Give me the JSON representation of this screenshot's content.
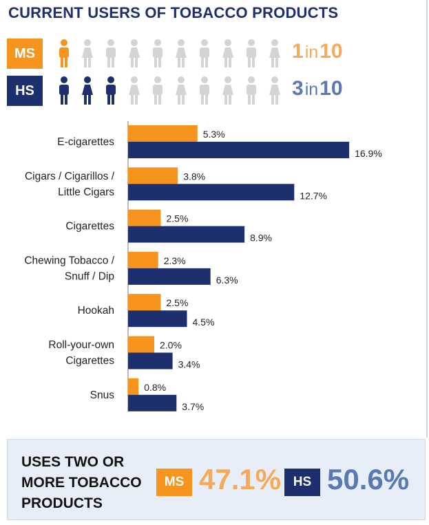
{
  "title": "CURRENT USERS OF TOBACCO PRODUCTS",
  "ratios": {
    "ms": {
      "badge": "MS",
      "count": "1",
      "in": "in",
      "total": "10",
      "highlighted": 1
    },
    "hs": {
      "badge": "HS",
      "count": "3",
      "in": "in",
      "total": "10",
      "highlighted": 3
    }
  },
  "colors": {
    "ms": "#f7941d",
    "hs": "#1e2f6e",
    "inactive_person": "#d4d4d4"
  },
  "chart_data": {
    "type": "bar",
    "orientation": "horizontal",
    "categories": [
      [
        "E-cigarettes"
      ],
      [
        "Cigars / Cigarillos /",
        "Little Cigars"
      ],
      [
        "Cigarettes"
      ],
      [
        "Chewing Tobacco /",
        "Snuff / Dip"
      ],
      [
        "Hookah"
      ],
      [
        "Roll-your-own",
        "Cigarettes"
      ],
      [
        "Snus"
      ]
    ],
    "series": [
      {
        "key": "ms",
        "values": [
          5.3,
          3.8,
          2.5,
          2.3,
          2.5,
          2.0,
          0.8
        ],
        "labels": [
          "5.3%",
          "3.8%",
          "2.5%",
          "2.3%",
          "2.5%",
          "2.0%",
          "0.8%"
        ]
      },
      {
        "key": "hs",
        "values": [
          16.9,
          12.7,
          8.9,
          6.3,
          4.5,
          3.4,
          3.7
        ],
        "labels": [
          "16.9%",
          "12.7%",
          "8.9%",
          "6.3%",
          "4.5%",
          "3.4%",
          "3.7%"
        ]
      }
    ],
    "xlim": [
      0,
      20
    ],
    "grid": false,
    "title": "",
    "xlabel": "",
    "ylabel": ""
  },
  "multi_use": {
    "label_lines": [
      "USES TWO OR",
      "MORE TOBACCO",
      "PRODUCTS"
    ],
    "ms": {
      "badge": "MS",
      "value": "47.1%"
    },
    "hs": {
      "badge": "HS",
      "value": "50.6%"
    }
  }
}
